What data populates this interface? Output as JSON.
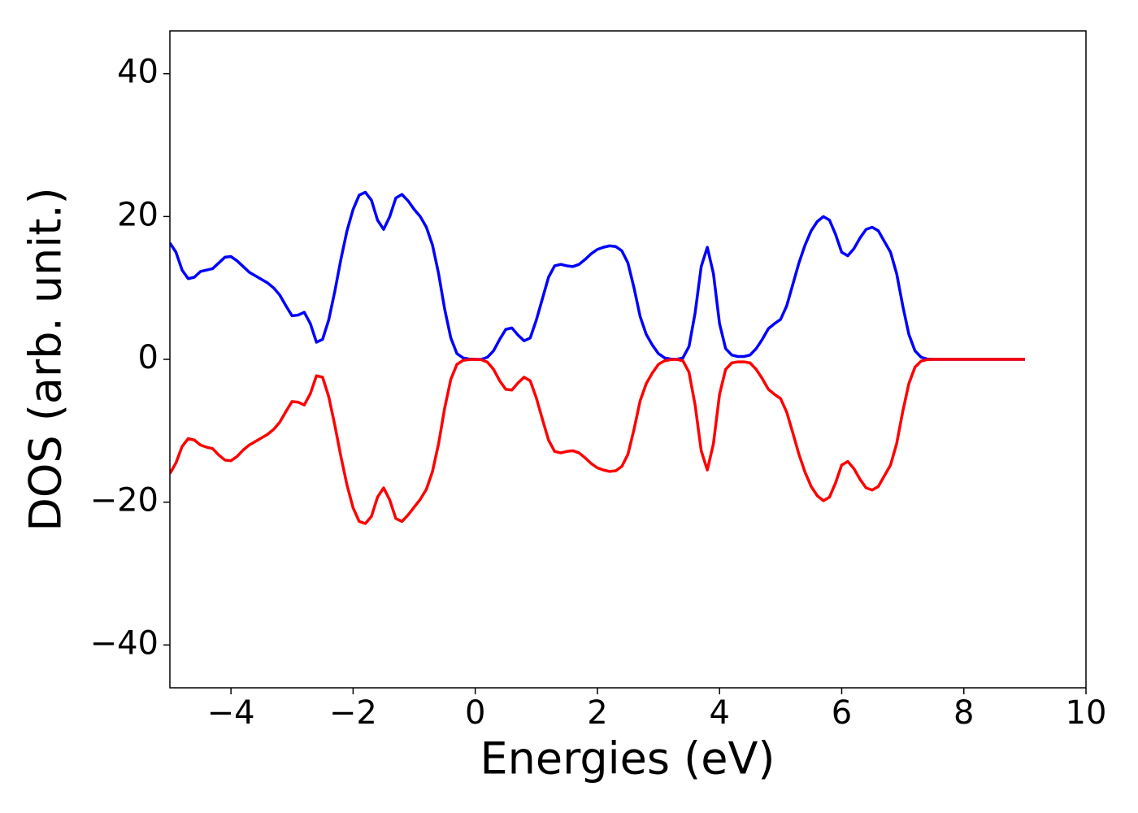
{
  "chart_data": {
    "type": "line",
    "xlabel": "Energies (eV)",
    "ylabel": "DOS (arb. unit.)",
    "x": [
      -5,
      -4.9,
      -4.8,
      -4.7,
      -4.6,
      -4.5,
      -4.4,
      -4.3,
      -4.2,
      -4.1,
      -4,
      -3.9,
      -3.8,
      -3.7,
      -3.6,
      -3.5,
      -3.4,
      -3.3,
      -3.2,
      -3.1,
      -3,
      -2.9,
      -2.8,
      -2.7,
      -2.6,
      -2.5,
      -2.4,
      -2.3,
      -2.2,
      -2.1,
      -2,
      -1.9,
      -1.8,
      -1.7,
      -1.6,
      -1.5,
      -1.4,
      -1.3,
      -1.2,
      -1.1,
      -1,
      -0.9,
      -0.8,
      -0.7,
      -0.6,
      -0.5,
      -0.4,
      -0.3,
      -0.2,
      -0.1,
      0,
      0.1,
      0.2,
      0.3,
      0.4,
      0.5,
      0.6,
      0.7,
      0.8,
      0.9,
      1,
      1.1,
      1.2,
      1.3,
      1.4,
      1.5,
      1.6,
      1.7,
      1.8,
      1.9,
      2,
      2.1,
      2.2,
      2.3,
      2.4,
      2.5,
      2.6,
      2.7,
      2.8,
      2.9,
      3,
      3.1,
      3.2,
      3.3,
      3.4,
      3.5,
      3.6,
      3.7,
      3.8,
      3.9,
      4,
      4.1,
      4.2,
      4.3,
      4.4,
      4.5,
      4.6,
      4.7,
      4.8,
      4.9,
      5,
      5.1,
      5.2,
      5.3,
      5.4,
      5.5,
      5.6,
      5.7,
      5.8,
      5.9,
      6,
      6.1,
      6.2,
      6.3,
      6.4,
      6.5,
      6.6,
      6.7,
      6.8,
      6.9,
      7,
      7.1,
      7.2,
      7.3,
      7.4,
      7.5,
      8,
      8.5,
      9
    ],
    "series": [
      {
        "color": "#0000ff",
        "values": [
          16.3,
          15,
          12.5,
          11.3,
          11.5,
          12.3,
          12.5,
          12.7,
          13.5,
          14.3,
          14.4,
          13.8,
          13,
          12.2,
          11.7,
          11.2,
          10.7,
          10,
          9,
          7.5,
          6.1,
          6.2,
          6.6,
          5,
          2.4,
          2.8,
          5.5,
          9.5,
          14,
          18,
          21,
          23,
          23.4,
          22.3,
          19.5,
          18.2,
          20,
          22.6,
          23.1,
          22.2,
          21,
          20,
          18.5,
          16,
          12,
          7,
          3,
          0.8,
          0.2,
          0.05,
          0,
          0,
          0.3,
          1.2,
          2.8,
          4.2,
          4.4,
          3.4,
          2.6,
          3,
          5.5,
          8.5,
          11.5,
          13.1,
          13.3,
          13.1,
          13,
          13.3,
          14,
          14.8,
          15.4,
          15.7,
          15.9,
          15.8,
          15.2,
          13.5,
          10,
          6,
          3.5,
          2,
          0.8,
          0.2,
          0.05,
          0,
          0.2,
          1.8,
          6.5,
          13,
          15.7,
          12,
          5,
          1.5,
          0.6,
          0.4,
          0.4,
          0.6,
          1.5,
          2.8,
          4.3,
          5,
          5.6,
          7.5,
          10.5,
          13.5,
          16,
          18,
          19.3,
          20,
          19.5,
          17.5,
          15,
          14.5,
          15.5,
          17,
          18.2,
          18.5,
          18,
          16.5,
          15,
          12,
          7.5,
          3.5,
          1.2,
          0.3,
          0.05,
          0,
          0,
          0,
          0
        ]
      },
      {
        "color": "#ff0000",
        "values": [
          -16,
          -14.5,
          -12.2,
          -11.1,
          -11.3,
          -12,
          -12.3,
          -12.5,
          -13.4,
          -14.1,
          -14.2,
          -13.6,
          -12.7,
          -12,
          -11.5,
          -11,
          -10.5,
          -9.8,
          -8.8,
          -7.3,
          -5.9,
          -6,
          -6.4,
          -4.8,
          -2.3,
          -2.5,
          -5.2,
          -9.2,
          -13.6,
          -17.6,
          -20.8,
          -22.7,
          -23,
          -22,
          -19.3,
          -18,
          -19.7,
          -22.3,
          -22.7,
          -21.8,
          -20.7,
          -19.6,
          -18.2,
          -15.7,
          -11.8,
          -6.8,
          -2.8,
          -0.7,
          -0.15,
          -0.03,
          0,
          -0.05,
          -0.4,
          -1.4,
          -3,
          -4.2,
          -4.3,
          -3.3,
          -2.5,
          -3,
          -5.4,
          -8.4,
          -11.3,
          -12.9,
          -13.1,
          -12.9,
          -12.8,
          -13.1,
          -13.8,
          -14.6,
          -15.2,
          -15.5,
          -15.7,
          -15.6,
          -15,
          -13.3,
          -9.8,
          -5.8,
          -3.4,
          -1.9,
          -0.7,
          -0.2,
          -0.04,
          0,
          -0.2,
          -1.8,
          -6.4,
          -12.8,
          -15.5,
          -11.8,
          -4.9,
          -1.4,
          -0.5,
          -0.35,
          -0.35,
          -0.5,
          -1.4,
          -2.7,
          -4.2,
          -4.9,
          -5.5,
          -7.4,
          -10.3,
          -13.3,
          -15.8,
          -17.8,
          -19.1,
          -19.8,
          -19.3,
          -17.3,
          -14.8,
          -14.3,
          -15.3,
          -16.8,
          -18,
          -18.3,
          -17.8,
          -16.3,
          -14.8,
          -11.8,
          -7.3,
          -3.4,
          -1.1,
          -0.25,
          -0.04,
          0,
          0,
          0,
          0
        ]
      }
    ],
    "xlim": [
      -5,
      10
    ],
    "xticks": [
      {
        "value": -4,
        "label": "−4"
      },
      {
        "value": -2,
        "label": "−2"
      },
      0,
      2,
      4,
      6,
      8,
      10
    ],
    "ylim": [
      -46,
      46
    ],
    "yticks": [
      {
        "value": -40,
        "label": "−40"
      },
      {
        "value": -20,
        "label": "−20"
      },
      0,
      20,
      40
    ],
    "grid": false
  }
}
